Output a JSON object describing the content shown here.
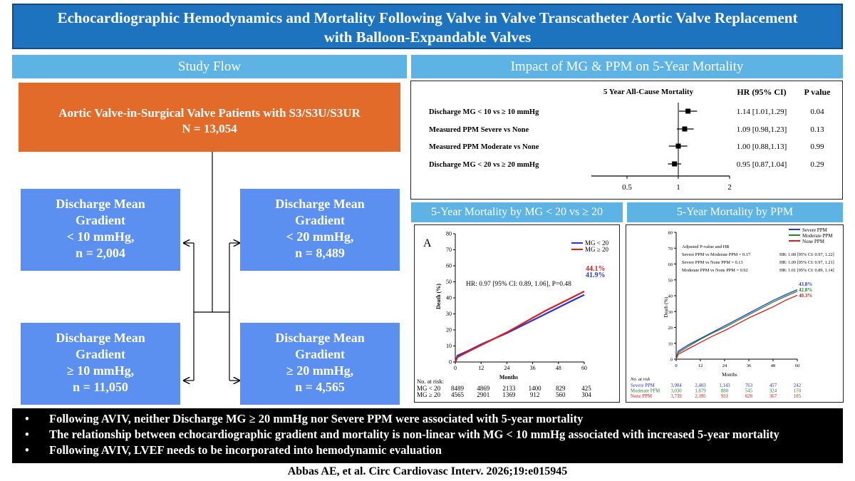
{
  "title_line1": "Echocardiographic Hemodynamics and Mortality Following Valve in Valve Transcatheter Aortic Valve Replacement",
  "title_line2": "with Balloon-Expandable Valves",
  "study_flow": {
    "header": "Study Flow",
    "top_line1": "Aortic Valve-in-Surgical Valve Patients with S3/S3U/S3UR",
    "top_line2": "N = 13,054",
    "boxes": [
      {
        "l1": "Discharge Mean",
        "l2": "Gradient",
        "l3": "< 10 mmHg,",
        "l4": "n = 2,004"
      },
      {
        "l1": "Discharge Mean",
        "l2": "Gradient",
        "l3": "< 20 mmHg,",
        "l4": "n = 8,489"
      },
      {
        "l1": "Discharge Mean",
        "l2": "Gradient",
        "l3": "≥ 10 mmHg,",
        "l4": "n = 11,050"
      },
      {
        "l1": "Discharge Mean",
        "l2": "Gradient",
        "l3": "≥ 20 mmHg,",
        "l4": "n = 4,565"
      }
    ]
  },
  "forest": {
    "header": "Impact of MG & PPM on 5-Year Mortality",
    "title": "5 Year All-Cause Mortality",
    "hr_header": "HR (95% CI)",
    "p_header": "P value",
    "rows": [
      {
        "label": "Discharge MG < 10 vs ≥ 10 mmHg",
        "hr": 1.14,
        "lo": 1.01,
        "hi": 1.29,
        "hr_text": "1.14 [1.01,1.29]",
        "p": "0.04"
      },
      {
        "label": "Measured PPM Severe vs None",
        "hr": 1.09,
        "lo": 0.98,
        "hi": 1.23,
        "hr_text": "1.09 [0.98,1.23]",
        "p": "0.13"
      },
      {
        "label": "Measured PPM Moderate vs None",
        "hr": 1.0,
        "lo": 0.88,
        "hi": 1.13,
        "hr_text": "1.00 [0.88,1.13]",
        "p": "0.99"
      },
      {
        "label": "Discharge MG < 20 vs ≥ 20 mmHg",
        "hr": 0.95,
        "lo": 0.87,
        "hi": 1.04,
        "hr_text": "0.95 [0.87,1.04]",
        "p": "0.29"
      }
    ],
    "ticks": [
      "0.5",
      "1",
      "2"
    ]
  },
  "km_mg_header": "5-Year Mortality by MG < 20 vs ≥ 20",
  "km_ppm_header": "5-Year Mortality by PPM",
  "bullets": [
    "Following AVIV, neither Discharge MG ≥ 20 mmHg nor Severe PPM were associated with 5-year mortality",
    "The relationship between echocardiographic gradient and mortality is non-linear with MG < 10 mmHg associated with increased 5-year mortality",
    "Following AVIV, LVEF needs to be incorporated into hemodynamic evaluation"
  ],
  "citation": "Abbas AE, et al. Circ Cardiovasc Interv. 2026;19:e015945",
  "chart_data": [
    {
      "type": "line",
      "panel_label": "A",
      "title": "",
      "xlabel": "Months",
      "ylabel": "Death (%)",
      "xlim": [
        0,
        60
      ],
      "ylim": [
        0,
        80
      ],
      "xticks": [
        0,
        12,
        24,
        36,
        48,
        60
      ],
      "yticks": [
        0,
        10,
        20,
        30,
        40,
        50,
        60,
        70,
        80
      ],
      "annotation": "HR: 0.97 [95% CI: 0.89, 1.06], P=0.48",
      "series": [
        {
          "name": "MG < 20",
          "color": "#2b35d6",
          "end_label": "41.9%",
          "x": [
            0,
            1,
            6,
            12,
            18,
            24,
            30,
            36,
            42,
            48,
            54,
            60
          ],
          "y": [
            0,
            4,
            7,
            11,
            14.5,
            18,
            22,
            26,
            30,
            34,
            38,
            41.9
          ]
        },
        {
          "name": "MG ≥ 20",
          "color": "#e01b1b",
          "end_label": "44.1%",
          "x": [
            0,
            1,
            6,
            12,
            18,
            24,
            30,
            36,
            42,
            48,
            54,
            60
          ],
          "y": [
            0,
            3,
            6.5,
            10.5,
            14.5,
            18.5,
            23,
            27.5,
            32,
            36,
            40,
            44.1
          ]
        }
      ],
      "risk_table": {
        "header": "No. at risk:",
        "rows": [
          {
            "label": "MG < 20",
            "values": [
              "8489",
              "4869",
              "2133",
              "1400",
              "829",
              "425"
            ]
          },
          {
            "label": "MG ≥ 20",
            "values": [
              "4565",
              "2901",
              "1369",
              "912",
              "560",
              "304"
            ]
          }
        ]
      }
    },
    {
      "type": "line",
      "title": "",
      "xlabel": "Months",
      "ylabel": "Death (%)",
      "xlim": [
        0,
        60
      ],
      "ylim": [
        0,
        80
      ],
      "xticks": [
        0,
        12,
        24,
        36,
        48,
        60
      ],
      "yticks": [
        0,
        10,
        20,
        30,
        40,
        50,
        60,
        70,
        80
      ],
      "annotation_title": "Adjusted P-value and HR",
      "annotations": [
        {
          "left": "Severe PPM vs Moderate PPM = 0.17",
          "right": "HR: 1.08 [95% CI: 0.97, 1.22]"
        },
        {
          "left": "Severe PPM vs None PPM = 0.13",
          "right": "HR: 1.09 [95% CI: 0.97, 1.21]"
        },
        {
          "left": "Moderate PPM vs None PPM = 0.92",
          "right": "HR: 1.01 [95% CI: 0.89, 1.14]"
        }
      ],
      "series": [
        {
          "name": "Severe PPM",
          "color": "#2b35d6",
          "end_label": "43.8%",
          "x": [
            0,
            1,
            6,
            12,
            18,
            24,
            30,
            36,
            42,
            48,
            54,
            60
          ],
          "y": [
            0,
            5,
            9,
            13,
            17,
            21,
            25,
            29,
            33,
            37,
            40.5,
            43.8
          ]
        },
        {
          "name": "Moderate PPM",
          "color": "#1e8a2e",
          "end_label": "42.8%",
          "x": [
            0,
            1,
            6,
            12,
            18,
            24,
            30,
            36,
            42,
            48,
            54,
            60
          ],
          "y": [
            0,
            4,
            8,
            12.5,
            16.5,
            20,
            24,
            28,
            32,
            36,
            39.5,
            42.8
          ]
        },
        {
          "name": "None PPM",
          "color": "#e01b1b",
          "end_label": "40.3%",
          "x": [
            0,
            1,
            6,
            12,
            18,
            24,
            30,
            36,
            42,
            48,
            54,
            60
          ],
          "y": [
            0,
            3,
            6.5,
            10.5,
            14.5,
            18,
            22,
            26,
            29.5,
            33,
            37,
            40.3
          ]
        }
      ],
      "risk_table": {
        "header": "No. at risk",
        "rows": [
          {
            "label": "Severe PPM",
            "color": "#2b35d6",
            "values": [
              "3,904",
              "2,403",
              "1,143",
              "763",
              "457",
              "242"
            ]
          },
          {
            "label": "Moderate PPM",
            "color": "#1e8a2e",
            "values": [
              "3,030",
              "1,879",
              "880",
              "545",
              "324",
              "170"
            ]
          },
          {
            "label": "None PPM",
            "color": "#e01b1b",
            "values": [
              "3,739",
              "2,195",
              "931",
              "628",
              "367",
              "185"
            ]
          }
        ]
      }
    }
  ]
}
